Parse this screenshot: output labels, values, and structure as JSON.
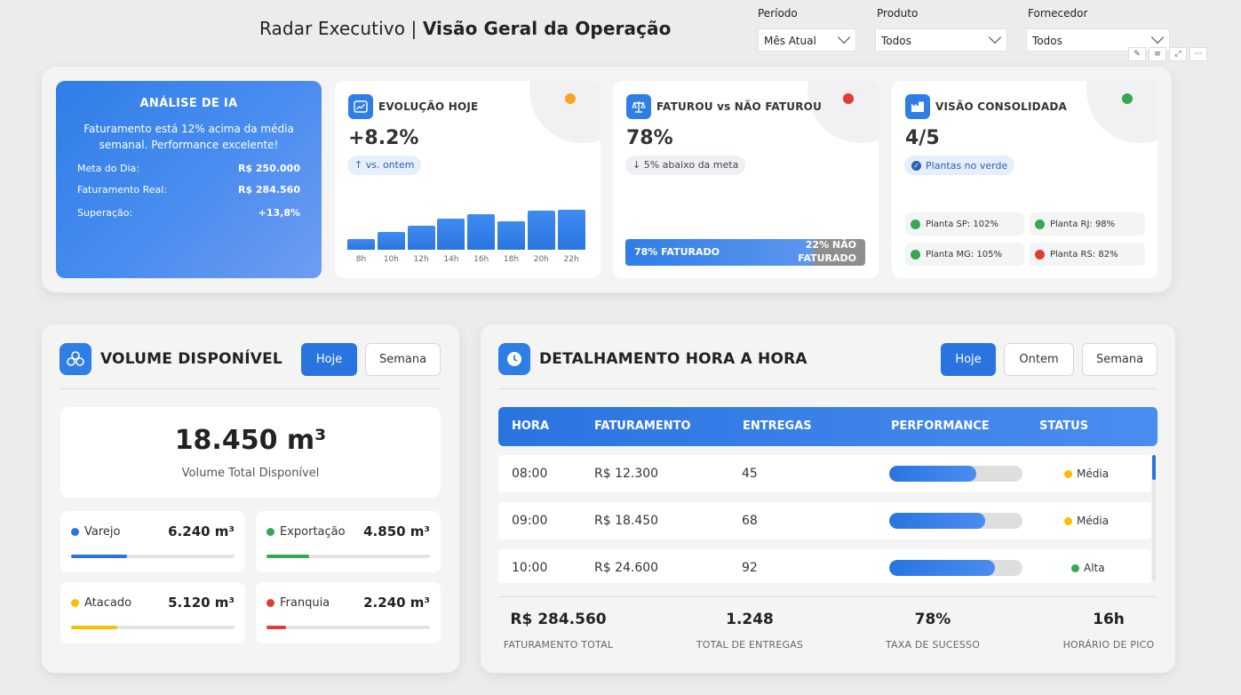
{
  "header": {
    "title_normal": "Radar Executivo | ",
    "title_bold": "Visão Geral da Operação"
  },
  "filters": [
    {
      "label": "Período",
      "value": "Mês Atual"
    },
    {
      "label": "Produto",
      "value": "Todos"
    },
    {
      "label": "Fornecedor",
      "value": "Todos"
    }
  ],
  "visual_icons": [
    "pin-icon",
    "filter-icon",
    "expand-icon",
    "more-options-icon"
  ],
  "ia": {
    "title": "ANÁLISE DE IA",
    "text": "Faturamento está 12% acima da média semanal. Performance excelente!",
    "rows": [
      {
        "label": "Meta do Dia:",
        "value": "R$ 250.000"
      },
      {
        "label": "Faturamento Real:",
        "value": "R$ 284.560"
      },
      {
        "label": "Superação:",
        "value": "+13,8%"
      }
    ]
  },
  "kpis": {
    "evolucao": {
      "title": "EVOLUÇÃO HOJE",
      "value": "+8.2%",
      "badge": "↑ vs. ontem",
      "status_color": "#f5a623"
    },
    "faturou": {
      "title": "FATUROU vs NÃO FATUROU",
      "value": "78%",
      "badge": "↓ 5% abaixo da meta",
      "status_color": "#e53935",
      "progress_fraction": 0.78,
      "faturado_label": "78% FATURADO",
      "nao_faturado_label_1": "22% NÃO",
      "nao_faturado_label_2": "FATURADO"
    },
    "consolidada": {
      "title": "VISÃO CONSOLIDADA",
      "value": "4/5",
      "badge": "Plantas no verde",
      "status_color": "#34a853",
      "plants": [
        {
          "label": "Planta SP: 102%",
          "color": "#34a853"
        },
        {
          "label": "Planta RJ: 98%",
          "color": "#34a853"
        },
        {
          "label": "Planta MG: 105%",
          "color": "#34a853"
        },
        {
          "label": "Planta RS: 82%",
          "color": "#e53935"
        }
      ]
    }
  },
  "chart_data": {
    "type": "bar",
    "categories": [
      "8h",
      "10h",
      "12h",
      "14h",
      "16h",
      "18h",
      "20h",
      "22h"
    ],
    "values": [
      10,
      16,
      22,
      28,
      32,
      26,
      35,
      36
    ],
    "title": "",
    "xlabel": "",
    "ylabel": "",
    "ylim": [
      0,
      40
    ]
  },
  "volume": {
    "title": "VOLUME DISPONÍVEL",
    "buttons": [
      "Hoje",
      "Semana"
    ],
    "total": "18.450 m³",
    "total_label": "Volume Total Disponível",
    "segments": [
      {
        "name": "Varejo",
        "value": "6.240 m³",
        "fraction": 0.34,
        "color": "#2a74e0"
      },
      {
        "name": "Exportação",
        "value": "4.850 m³",
        "fraction": 0.26,
        "color": "#34a853"
      },
      {
        "name": "Atacado",
        "value": "5.120 m³",
        "fraction": 0.28,
        "color": "#fbbc04"
      },
      {
        "name": "Franquia",
        "value": "2.240 m³",
        "fraction": 0.12,
        "color": "#e53935"
      }
    ]
  },
  "detalhamento": {
    "title": "DETALHAMENTO HORA A HORA",
    "buttons": [
      "Hoje",
      "Ontem",
      "Semana"
    ],
    "columns": [
      "HORA",
      "FATURAMENTO",
      "ENTREGAS",
      "PERFORMANCE",
      "STATUS"
    ],
    "rows": [
      {
        "hora": "08:00",
        "faturamento": "R$ 12.300",
        "entregas": "45",
        "performance": 0.65,
        "status": "Média",
        "status_color": "#fbbc04"
      },
      {
        "hora": "09:00",
        "faturamento": "R$ 18.450",
        "entregas": "68",
        "performance": 0.72,
        "status": "Média",
        "status_color": "#fbbc04"
      },
      {
        "hora": "10:00",
        "faturamento": "R$ 24.600",
        "entregas": "92",
        "performance": 0.79,
        "status": "Alta",
        "status_color": "#34a853"
      }
    ],
    "summary": [
      {
        "value": "R$ 284.560",
        "label": "FATURAMENTO TOTAL"
      },
      {
        "value": "1.248",
        "label": "TOTAL DE ENTREGAS"
      },
      {
        "value": "78%",
        "label": "TAXA DE SUCESSO"
      },
      {
        "value": "16h",
        "label": "HORÁRIO DE PICO"
      }
    ]
  }
}
